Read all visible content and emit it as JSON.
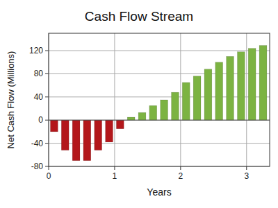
{
  "chart_data": {
    "type": "bar",
    "title": "Cash Flow Stream",
    "x_label": "Years",
    "y_label": "Net Cash Flow (Millions)",
    "x": [
      0.083,
      0.25,
      0.417,
      0.583,
      0.75,
      0.917,
      1.083,
      1.25,
      1.417,
      1.583,
      1.75,
      1.917,
      2.083,
      2.25,
      2.417,
      2.583,
      2.75,
      2.917,
      3.083,
      3.25
    ],
    "values": [
      -20,
      -52,
      -70,
      -70,
      -52,
      -38,
      -15,
      5,
      13,
      25,
      35,
      48,
      65,
      76,
      88,
      100,
      110,
      118,
      124,
      129
    ],
    "colors": [
      "#b3171b",
      "#b3171b",
      "#b3171b",
      "#b3171b",
      "#b3171b",
      "#b3171b",
      "#b3171b",
      "#7cb342",
      "#7cb342",
      "#7cb342",
      "#7cb342",
      "#7cb342",
      "#7cb342",
      "#7cb342",
      "#7cb342",
      "#7cb342",
      "#7cb342",
      "#7cb342",
      "#7cb342",
      "#7cb342"
    ],
    "xlim": [
      0,
      3.35
    ],
    "xticks": [
      0,
      1,
      2,
      3
    ],
    "ylim": [
      -80,
      150
    ],
    "yticks": [
      -80,
      -40,
      0,
      40,
      80,
      120
    ],
    "grid": true
  }
}
